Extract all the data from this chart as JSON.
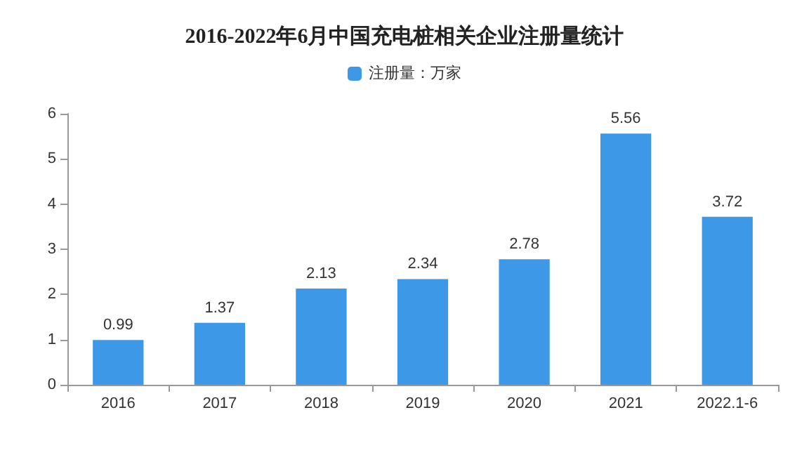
{
  "chart_data": {
    "type": "bar",
    "title": "2016-2022年6月中国充电桩相关企业注册量统计",
    "categories": [
      "2016",
      "2017",
      "2018",
      "2019",
      "2020",
      "2021",
      "2022.1-6"
    ],
    "series": [
      {
        "name": "注册量：万家",
        "color": "#3d99e8",
        "values": [
          0.99,
          1.37,
          2.13,
          2.34,
          2.78,
          5.56,
          3.72
        ]
      }
    ],
    "ylim": [
      0,
      6
    ],
    "yticks": [
      0,
      1,
      2,
      3,
      4,
      5,
      6
    ],
    "grid": false,
    "legend": "top",
    "data_labels": true
  }
}
